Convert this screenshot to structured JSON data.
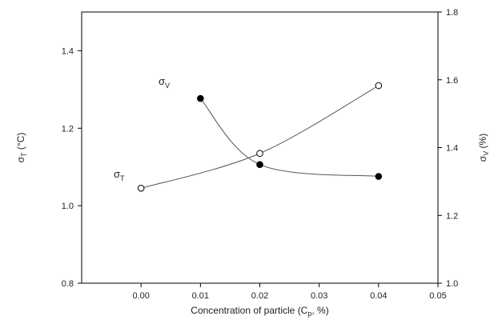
{
  "chart_data": {
    "type": "line",
    "xlabel": "Concentration of particle (C",
    "xlabel_sub": "p",
    "xlabel_tail": ", %)",
    "ylabel_left": {
      "symbol": "σ",
      "sub": "T",
      "text": " (°C)"
    },
    "ylabel_right": {
      "symbol": "σ",
      "sub": "V",
      "text": " (%)"
    },
    "xlim": [
      -0.01,
      0.05
    ],
    "ylim_left": [
      0.8,
      1.5
    ],
    "ylim_right": [
      1.0,
      1.8
    ],
    "x_ticks": [
      0.0,
      0.01,
      0.02,
      0.03,
      0.04,
      0.05
    ],
    "x_tick_labels": [
      "0.00",
      "0.01",
      "0.02",
      "0.03",
      "0.04",
      "0.05"
    ],
    "y_left_ticks": [
      0.8,
      1.0,
      1.2,
      1.4
    ],
    "y_left_tick_labels": [
      "0.8",
      "1.0",
      "1.2",
      "1.4"
    ],
    "y_right_ticks": [
      1.0,
      1.2,
      1.4,
      1.6,
      1.8
    ],
    "y_right_tick_labels": [
      "1.0",
      "1.2",
      "1.4",
      "1.6",
      "1.8"
    ],
    "grid": false,
    "series": [
      {
        "name": "σT",
        "axis": "left",
        "marker": "open-circle",
        "x": [
          0.0,
          0.02,
          0.04
        ],
        "y": [
          1.045,
          1.135,
          1.31
        ]
      },
      {
        "name": "σV",
        "axis": "right",
        "marker": "filled-circle",
        "x": [
          0.01,
          0.02,
          0.04
        ],
        "y": [
          1.545,
          1.35,
          1.315
        ]
      }
    ],
    "annotations": [
      {
        "symbol": "σ",
        "sub": "V",
        "near_series": 1
      },
      {
        "symbol": "σ",
        "sub": "T",
        "near_series": 0
      }
    ]
  }
}
